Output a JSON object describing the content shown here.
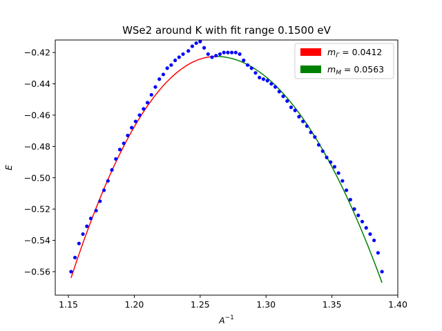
{
  "chart_data": {
    "type": "scatter",
    "title": "WSe2 around K with fit range 0.1500 eV",
    "xlabel": "A^{-1}",
    "ylabel": "E",
    "xlim": [
      1.14,
      1.4
    ],
    "ylim": [
      -0.575,
      -0.412
    ],
    "x_ticks": [
      1.15,
      1.2,
      1.25,
      1.3,
      1.35,
      1.4
    ],
    "x_tick_labels": [
      "1.15",
      "1.20",
      "1.25",
      "1.30",
      "1.35",
      "1.40"
    ],
    "y_ticks": [
      -0.56,
      -0.54,
      -0.52,
      -0.5,
      -0.48,
      -0.46,
      -0.44,
      -0.42
    ],
    "y_tick_labels": [
      "−0.56",
      "−0.54",
      "−0.52",
      "−0.50",
      "−0.48",
      "−0.46",
      "−0.44",
      "−0.42"
    ],
    "grid": false,
    "legend_position": "top-right",
    "legend": [
      {
        "label_main": "m",
        "label_sub": "Γ",
        "label_rest": " = 0.0412",
        "color": "#ff0000"
      },
      {
        "label_main": "m",
        "label_sub": "M",
        "label_rest": " = 0.0563",
        "color": "#008000"
      }
    ],
    "scatter_series": {
      "color": "#0000ff",
      "points": [
        [
          1.152,
          -0.56
        ],
        [
          1.155,
          -0.551
        ],
        [
          1.158,
          -0.542
        ],
        [
          1.161,
          -0.536
        ],
        [
          1.164,
          -0.531
        ],
        [
          1.167,
          -0.526
        ],
        [
          1.171,
          -0.521
        ],
        [
          1.174,
          -0.515
        ],
        [
          1.177,
          -0.508
        ],
        [
          1.18,
          -0.502
        ],
        [
          1.183,
          -0.495
        ],
        [
          1.186,
          -0.488
        ],
        [
          1.189,
          -0.482
        ],
        [
          1.192,
          -0.478
        ],
        [
          1.195,
          -0.473
        ],
        [
          1.198,
          -0.468
        ],
        [
          1.201,
          -0.464
        ],
        [
          1.204,
          -0.46
        ],
        [
          1.207,
          -0.456
        ],
        [
          1.21,
          -0.452
        ],
        [
          1.213,
          -0.447
        ],
        [
          1.216,
          -0.442
        ],
        [
          1.219,
          -0.437
        ],
        [
          1.222,
          -0.434
        ],
        [
          1.225,
          -0.43
        ],
        [
          1.228,
          -0.428
        ],
        [
          1.231,
          -0.425
        ],
        [
          1.234,
          -0.423
        ],
        [
          1.237,
          -0.421
        ],
        [
          1.241,
          -0.419
        ],
        [
          1.244,
          -0.416
        ],
        [
          1.247,
          -0.414
        ],
        [
          1.25,
          -0.413
        ],
        [
          1.253,
          -0.417
        ],
        [
          1.256,
          -0.421
        ],
        [
          1.259,
          -0.423
        ],
        [
          1.262,
          -0.422
        ],
        [
          1.265,
          -0.421
        ],
        [
          1.268,
          -0.42
        ],
        [
          1.271,
          -0.42
        ],
        [
          1.274,
          -0.42
        ],
        [
          1.277,
          -0.42
        ],
        [
          1.28,
          -0.421
        ],
        [
          1.283,
          -0.425
        ],
        [
          1.286,
          -0.428
        ],
        [
          1.289,
          -0.43
        ],
        [
          1.292,
          -0.433
        ],
        [
          1.295,
          -0.436
        ],
        [
          1.298,
          -0.437
        ],
        [
          1.301,
          -0.438
        ],
        [
          1.304,
          -0.44
        ],
        [
          1.307,
          -0.442
        ],
        [
          1.31,
          -0.445
        ],
        [
          1.313,
          -0.448
        ],
        [
          1.316,
          -0.451
        ],
        [
          1.319,
          -0.455
        ],
        [
          1.322,
          -0.457
        ],
        [
          1.325,
          -0.461
        ],
        [
          1.328,
          -0.464
        ],
        [
          1.331,
          -0.467
        ],
        [
          1.334,
          -0.471
        ],
        [
          1.337,
          -0.474
        ],
        [
          1.34,
          -0.479
        ],
        [
          1.343,
          -0.483
        ],
        [
          1.346,
          -0.487
        ],
        [
          1.349,
          -0.49
        ],
        [
          1.352,
          -0.493
        ],
        [
          1.355,
          -0.497
        ],
        [
          1.358,
          -0.502
        ],
        [
          1.361,
          -0.508
        ],
        [
          1.364,
          -0.514
        ],
        [
          1.367,
          -0.52
        ],
        [
          1.37,
          -0.524
        ],
        [
          1.373,
          -0.528
        ],
        [
          1.376,
          -0.532
        ],
        [
          1.379,
          -0.536
        ],
        [
          1.382,
          -0.54
        ],
        [
          1.385,
          -0.548
        ],
        [
          1.388,
          -0.56
        ]
      ]
    },
    "fit_curves": [
      {
        "name": "Gamma fit",
        "color": "#ff0000",
        "x_start": 1.152,
        "x_end": 1.262,
        "vertex_x": 1.262,
        "vertex_y": -0.4225,
        "y_at_start": -0.564
      },
      {
        "name": "M fit",
        "color": "#008000",
        "x_start": 1.262,
        "x_end": 1.388,
        "vertex_x": 1.262,
        "vertex_y": -0.4225,
        "y_at_end": -0.567
      }
    ]
  }
}
